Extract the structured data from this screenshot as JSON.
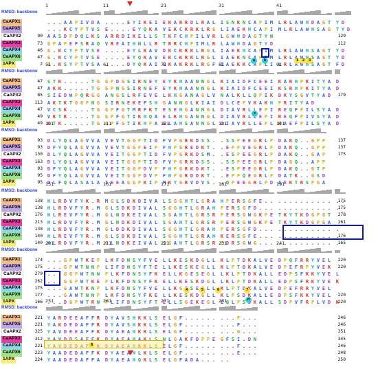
{
  "rmsd_label": "RMSD: backbone",
  "species": [
    {
      "name": "CaAPX1",
      "color": "#f2bd8c"
    },
    {
      "name": "CaAPX5",
      "color": "#c1a6e2"
    },
    {
      "name": "CaAPX2",
      "color": "#ffffff"
    },
    {
      "name": "CaAPX3",
      "color": "#ea3ca1"
    },
    {
      "name": "CaAPX4",
      "color": "#8fd7e5"
    },
    {
      "name": "CaAPX6",
      "color": "#9be38c"
    },
    {
      "name": "1APX",
      "color": "#f7ee7a"
    }
  ],
  "residue_colors": {
    "A": "#2d5fe8",
    "I": "#2d5fe8",
    "L": "#2d5fe8",
    "M": "#2d5fe8",
    "F": "#2d5fe8",
    "W": "#2d5fe8",
    "V": "#2d5fe8",
    "C": "#2d5fe8",
    "K": "#e02b20",
    "R": "#e02b20",
    "E": "#a33ac4",
    "D": "#a33ac4",
    "N": "#1fa83a",
    "Q": "#1fa83a",
    "S": "#1fa83a",
    "T": "#1fa83a",
    "G": "#e88a1c",
    "P": "#c9b400",
    "H": "#1ea6b8",
    "Y": "#1ea6b8",
    "X": "#444444",
    "-": "#444444",
    ".": "#444444"
  },
  "blocks": [
    {
      "ruler": [
        "1",
        "11",
        "21",
        "31",
        "41"
      ],
      "starts": [
        "",
        "",
        "90",
        "73",
        "46",
        "47",
        "2"
      ],
      "rows": [
        "...AAPIVDA....EYIKEIEKARRDLRALISNKNCAPIMLRLAWHDAGTYD",
        "...KCYPTVSE....EYQKAVEKCKRKLRGLIAEKHCAPIMLRLAWHSAGTYD",
        "AASDPDQLKSARRDIKELLSTKFCHPILVRLGWHDAGTYN",
        "GPAPEFSRAQVREAIHNLLRTRRCHPIMLRLAWHDAGTYD",
        "G.KCYPTVSE....EYLKAVDKCKRKLRGLIAEKHCAPIMLRLAWHSAGTYD",
        "G.KCYPTVSE....EYQKAVEKCKRKLRGLIAEKNCAPIMLRLAWHSAGTYD",
        "G.KSYPTVSA....DYQKAIEKAKRKLRGFIAEKKCAPLILRLAWHSAGTFD"
      ],
      "ends": [
        "",
        "",
        "129",
        "112",
        "",
        "",
        ""
      ]
    },
    {
      "ruler": [
        "51",
        "61",
        "71",
        "81",
        "91"
      ],
      "starts": [
        "47",
        "47",
        "85",
        "113",
        "47",
        "49",
        "49"
      ],
      "rows": [
        "STK.....TGGPDGSIRNEYEYKHAANNGLKIAIDFCEEIKARHPKITYAD",
        "AKK.....TGGPNGSIRNEFEYKHAANNGLKIAIDFCEEIKSRHPKITYAD",
        "SIEDWPQRGGANGSLRFEVELKHGANAGLVNALKLLQPIKDKYSGVTYAD",
        "AKTKTGGPNGSIRNEKEFSHGANNGLKIAIDLCEPVKAKHPRITYAD",
        "VCSK....TGGPFGTMRFKTESEHGANNGLDIAVRLLEPIREQFPILSYAD",
        "VKTK....TGGPFGTIKHQAELKHGANNGLDIAVRLLEPIREQFPIVSYAD",
        "KTK.....TGGPFGTIKHPAELAHSANNGLDIAVRLLEPLKAEFPILSYAD"
      ],
      "ends": [
        "",
        "",
        "179",
        "",
        "",
        "",
        ""
      ]
    },
    {
      "ruler": [
        "101",
        "111",
        "121",
        "131",
        "141"
      ],
      "starts": [
        "93",
        "93",
        "130",
        "163",
        "93",
        "95",
        "95"
      ],
      "rows": [
        "DLYQLAGVVAVEVTGGPTIDFVPGRKDSS..SSPEEGRLPDAKQ..GPP",
        "DFYQLAGVVAVEVTGGPEIPFHPGREDKT..EPPVEGRLPDAKQ..GPP",
        "DLYQLAGVVAVEITGGPTIDFVPGRKDSM..ESPEEGRLPDAKQ..GAP",
        "DLYQLAGVVAVEITGGPTIDFVPGRKDSS..SSPEEGRLPDAGQ..APP",
        "DFYQLAGVVAVEITGGPDVPFHPGRKDKT..ESPEEGRLPDAKQ..GTP",
        "DFYQLAGVVAVEITGGPDVPFHPGRDDKT..EPPQEGRLPDATK..GSD",
        "DLFQLASALAIEEAGGPKIPMKYGRVDVS..QPEEGRLPDAEKTRSPGA"
      ],
      "ends": [
        "137",
        "137",
        "175",
        "",
        "",
        "",
        ""
      ]
    },
    {
      "ruler": [
        "151",
        "161",
        "171",
        "181",
        "191"
      ],
      "starts": [
        "138",
        "138",
        "176",
        "213",
        "138",
        "140",
        "140"
      ],
      "rows": [
        "HLRDVFYK.RMGLSDKDIVALSGGHTLGRAHPERSGFE..............",
        "HLRDVFYR.MGLSDKDIVALSGGHTLGRAHPERSGFD..............",
        "HLREVFYR.MGLNDKEIVALSGAHTLGRSRPERSGWGKPETKYTKDGPGT",
        "HLRDVFYR.MGLNDKDIVALSGAHTLGRSRPERSGWGKPETKYTKDGPGA",
        "HLRDVFYR.MGLDDKDIVALSGGHTLGRAHPERSGFD..............",
        "HLREVFYR.MGLSDKDIVALSGGHTLGRAHKERSGFE..............",
        "HLRDVFYR.MGLNDKEIVALSGAHTLGRSRPDRSGWG.............."
      ],
      "ends": [
        "175",
        "175",
        "278",
        "261",
        "",
        "176",
        "165"
      ]
    },
    {
      "ruler": [
        "201",
        "211",
        "221",
        "231",
        "241"
      ],
      "starts": [
        "174",
        "175",
        "279",
        "262",
        "175",
        "177",
        "166"
      ],
      "rows": [
        "...GPWTKEPLKFDNSYFVELLKESKDGLLKLPTDKALVEDPQFRRYVEL",
        "...GPWTNNPLIFDNSYFTELLKESKEGLLKLPTDKALVEDPEFRPYVEK",
        "...GGPWTNNPLKFDNSYFKELLKGESEGLLKLPTDKALLEDPSFKKYVEL",
        "...GGPWTKEPLKFDNSYFKELLKESKDGLLKLPTDKALLEDPSFRKYVEK",
        "...GAWTKNPLKFDNSYFVELLKGESEGLLKLPTDKALVEDPEFRRYVEL",
        "...GAWTNNPLKFDNSYFKELLKESKDGLLKLPSDKALLEDPSFKKYVEL",
        "...DGPWTRNPLIFDNSYFTELLSGEKEGLLQLPSDKALLSDPVFRPLVDK"
      ],
      "ends": [
        "220",
        "220",
        "",
        "",
        "",
        "220",
        "220"
      ]
    },
    {
      "ruler": [
        "251",
        "261",
        "271",
        "281"
      ],
      "starts": [
        "221",
        "221",
        "325",
        "312",
        "221",
        "223",
        "224"
      ],
      "rows": [
        "YARDEEAFFRDYAVSHKKLSELGF.........P...",
        "YAKDEDAFFRDYAVSHKKLSELGF.........F...",
        "YAVDEEAFFKDYAEAHKKLSELGF.........G...",
        "YAVDDSAFFKDYAEAHAKLSNLGAKFDPPEGFSI.DN",
        "YAVDEDAFFKDYAEAHKKLSELGF.........F...",
        "YAADEDAFFKDYAEAHLKLSELGF.........E...",
        "YAADEDAFFADYAEAHQKLSELGFADA....."
      ],
      "ends": [
        "246",
        "246",
        "351",
        "345",
        "246",
        "248",
        "250"
      ]
    }
  ],
  "markers": [
    {
      "t": "y",
      "label": "1"
    },
    {
      "t": "y",
      "label": "2"
    },
    {
      "t": "y",
      "label": "3"
    },
    {
      "t": "c",
      "label": "a"
    },
    {
      "t": "c",
      "label": "b"
    },
    {
      "t": "c",
      "label": "c"
    },
    {
      "t": "y",
      "label": "4"
    },
    {
      "t": "y",
      "label": "5"
    },
    {
      "t": "y",
      "label": "6"
    },
    {
      "t": "y",
      "label": "7"
    },
    {
      "t": "c",
      "label": "d"
    },
    {
      "t": "y",
      "label": "8"
    }
  ]
}
